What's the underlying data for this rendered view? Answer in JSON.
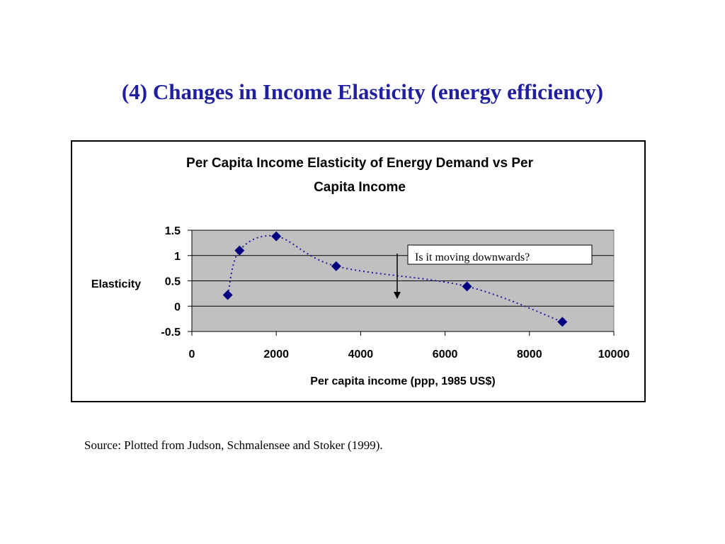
{
  "slide": {
    "title": "(4) Changes in Income Elasticity (energy efficiency)",
    "source": "Source: Plotted from Judson, Schmalensee and Stoker (1999).",
    "title_color": "#1f1fa0"
  },
  "chart_data": {
    "type": "scatter",
    "title_lines": [
      "Per Capita Income Elasticity of Energy Demand vs Per",
      "Capita Income"
    ],
    "xlabel": "Per capita income (ppp, 1985 US$)",
    "ylabel": "Elasticity",
    "xlim": [
      0,
      10000
    ],
    "ylim": [
      -0.5,
      1.5
    ],
    "x_ticks": [
      0,
      2000,
      4000,
      6000,
      8000,
      10000
    ],
    "y_ticks": [
      1.5,
      1,
      0.5,
      0,
      -0.5
    ],
    "x_tick_labels": [
      "0",
      "2000",
      "4000",
      "6000",
      "8000",
      "10000"
    ],
    "y_tick_labels": [
      "1.5",
      "1",
      "0.5",
      "0",
      "-0.5"
    ],
    "series": [
      {
        "x": [
          850,
          1130,
          2000,
          3420,
          6520,
          8780
        ],
        "y": [
          0.22,
          1.1,
          1.38,
          0.79,
          0.39,
          -0.31
        ],
        "color": "#000080",
        "trend_color": "#1f1fa0"
      }
    ],
    "grid": "horizontal",
    "plot_background": "#c0c0c0",
    "annotation": "Is it moving downwards?"
  }
}
